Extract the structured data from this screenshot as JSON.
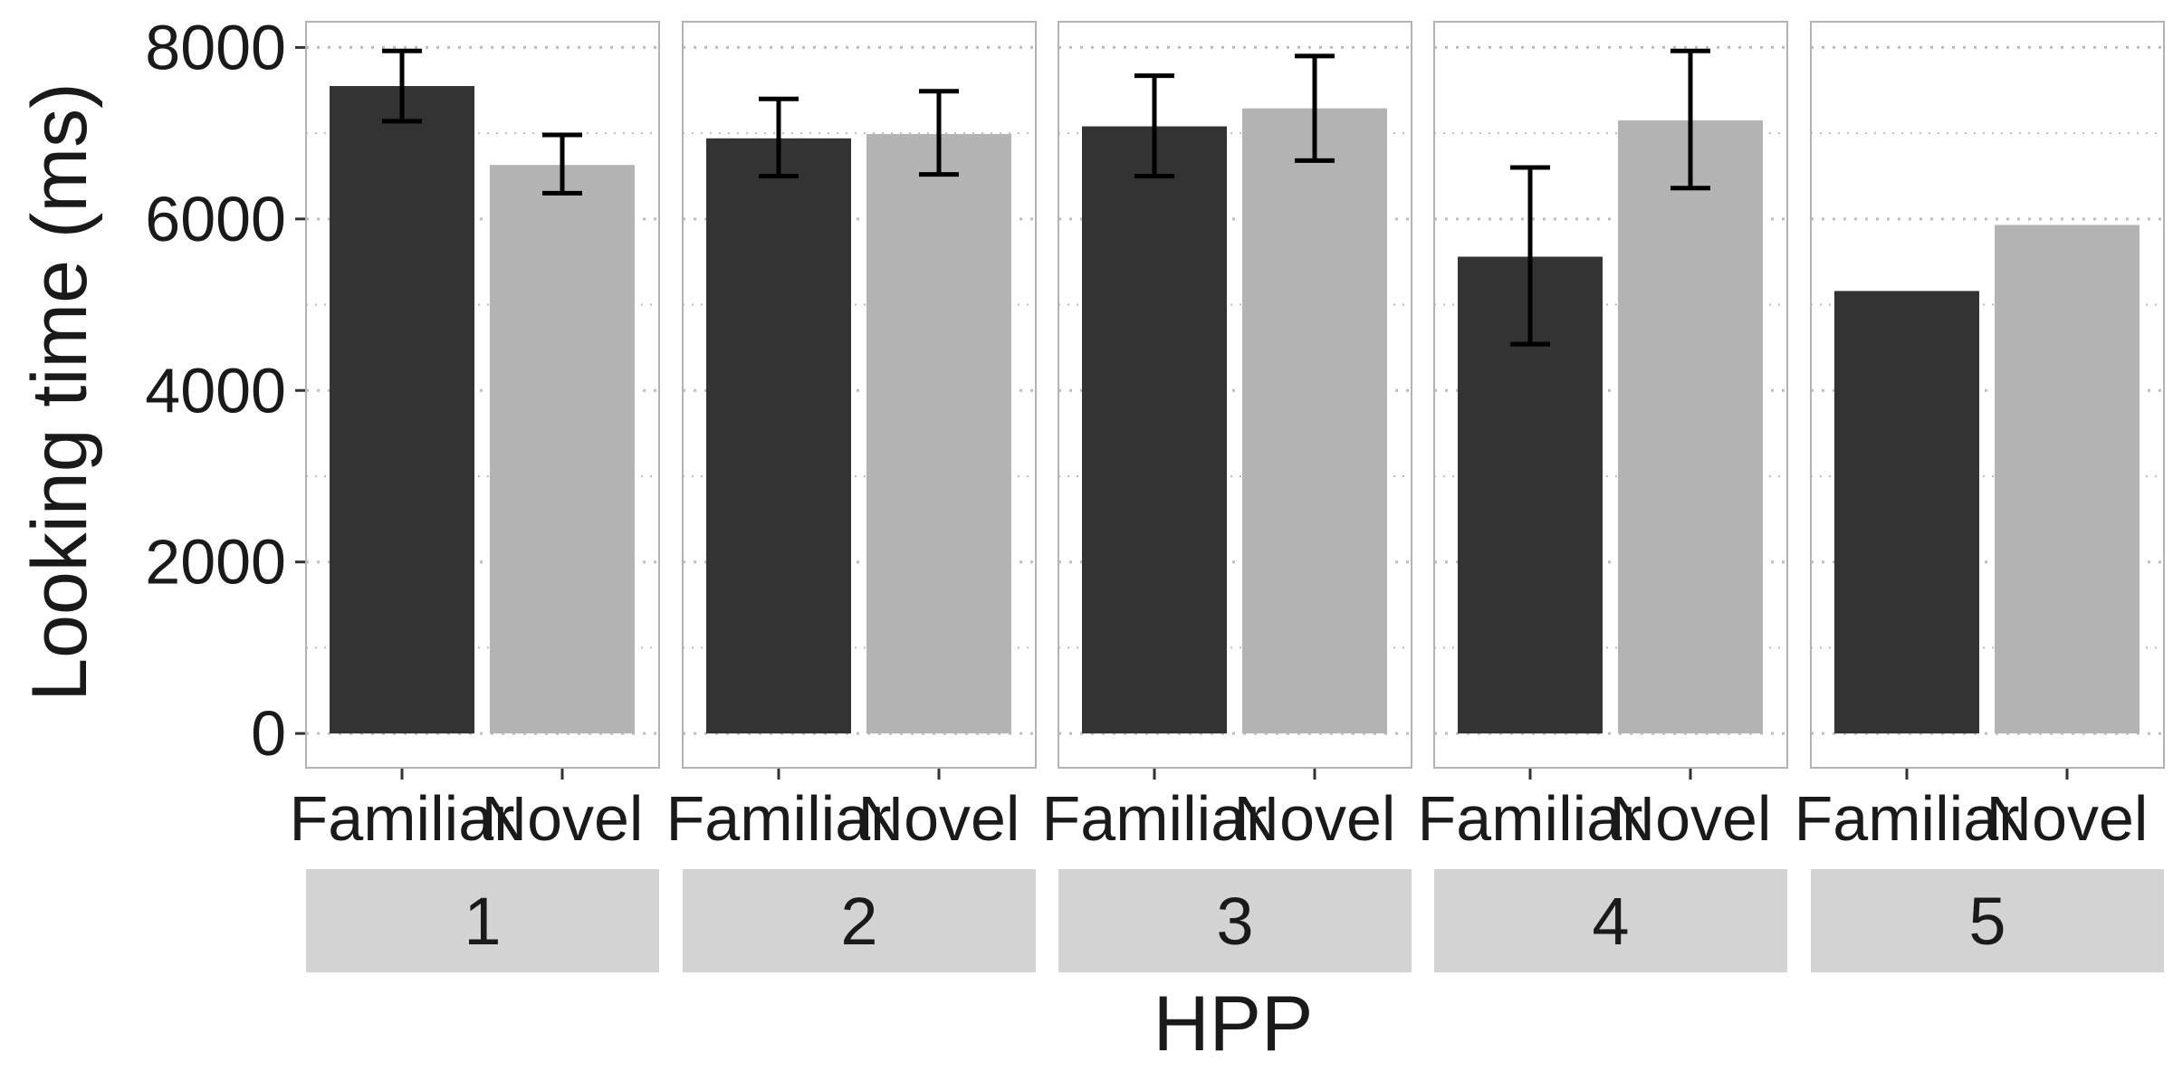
{
  "chart_data": {
    "type": "bar",
    "layout": "faceted",
    "xlabel": "HPP",
    "ylabel": "Looking time (ms)",
    "ylim": [
      -400,
      8300
    ],
    "yticks": [
      0,
      2000,
      4000,
      6000,
      8000
    ],
    "ytick_labels": [
      "0",
      "2000",
      "4000",
      "6000",
      "8000"
    ],
    "minor_gridlines": [
      1000,
      3000,
      5000,
      7000
    ],
    "grid": true,
    "grid_style": "dotted",
    "categories": [
      "Familiar",
      "Novel"
    ],
    "category_colors": {
      "Familiar": "#333333",
      "Novel": "#b3b3b3"
    },
    "strip_color": "#d3d3d3",
    "panel_border_color": "#b3b3b3",
    "grid_color": "#bdbdbd",
    "facets": [
      {
        "label": "1",
        "values": [
          7550,
          6630
        ],
        "error_low": [
          7140,
          6300
        ],
        "error_high": [
          7960,
          6980
        ]
      },
      {
        "label": "2",
        "values": [
          6940,
          6990
        ],
        "error_low": [
          6500,
          6520
        ],
        "error_high": [
          7400,
          7490
        ]
      },
      {
        "label": "3",
        "values": [
          7080,
          7290
        ],
        "error_low": [
          6500,
          6680
        ],
        "error_high": [
          7670,
          7900
        ]
      },
      {
        "label": "4",
        "values": [
          5560,
          7150
        ],
        "error_low": [
          4540,
          6360
        ],
        "error_high": [
          6600,
          7960
        ]
      },
      {
        "label": "5",
        "values": [
          5160,
          5930
        ],
        "error_low": null,
        "error_high": null
      }
    ]
  }
}
